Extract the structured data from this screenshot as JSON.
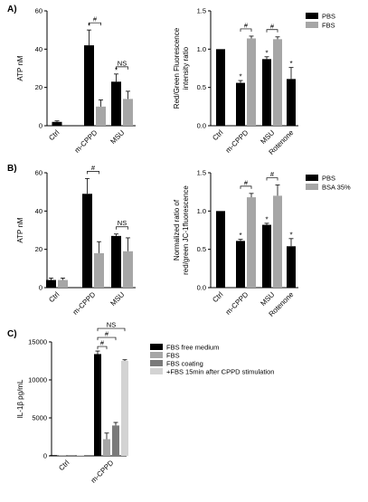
{
  "panel_letters": [
    "A)",
    "B)",
    "C)"
  ],
  "colors": {
    "series1": "#000000",
    "series2": "#a6a6a6",
    "series3": "#7a7a7a",
    "series4": "#d3d3d3"
  },
  "chart_data": [
    {
      "id": "A-left",
      "type": "bar",
      "panel": "A)",
      "ylabel": "ATP nM",
      "ylim": [
        0,
        60
      ],
      "yticks": [
        0,
        20,
        40,
        60
      ],
      "categories": [
        "Ctrl",
        "m-CPPD",
        "MSU"
      ],
      "series": [
        {
          "values": [
            2,
            42,
            23
          ],
          "errors": [
            0.5,
            8,
            4
          ],
          "stars": [
            "",
            "*",
            "*"
          ]
        },
        {
          "values": [
            null,
            10,
            14
          ],
          "errors": [
            null,
            3.5,
            4
          ],
          "stars": [
            "",
            "",
            ""
          ]
        }
      ],
      "brackets": [
        {
          "category": 1,
          "label": "#"
        },
        {
          "category": 2,
          "label": "NS"
        }
      ]
    },
    {
      "id": "A-right",
      "type": "bar",
      "panel": "A)",
      "ylabel": "Red/Green Fluorescence intensity ratio",
      "ylim": [
        0,
        1.5
      ],
      "yticks": [
        "0.0",
        "0.5",
        "1.0",
        "1.5"
      ],
      "categories": [
        "Ctrl",
        "m-CPPD",
        "MSU",
        "Rotenone"
      ],
      "legend": [
        "PBS",
        "FBS"
      ],
      "series": [
        {
          "name": "PBS",
          "values": [
            1.0,
            0.56,
            0.87,
            0.61
          ],
          "errors": [
            0,
            0.03,
            0.03,
            0.15
          ],
          "stars": [
            "",
            "*",
            "*",
            "*"
          ]
        },
        {
          "name": "FBS",
          "values": [
            null,
            1.14,
            1.13,
            null
          ],
          "errors": [
            null,
            0.03,
            0.03,
            null
          ],
          "stars": [
            "",
            "",
            "",
            ""
          ]
        }
      ],
      "brackets": [
        {
          "category": 1,
          "label": "#"
        },
        {
          "category": 2,
          "label": "#"
        }
      ]
    },
    {
      "id": "B-left",
      "type": "bar",
      "panel": "B)",
      "ylabel": "ATP nM",
      "ylim": [
        0,
        60
      ],
      "yticks": [
        0,
        20,
        40,
        60
      ],
      "categories": [
        "Ctrl",
        "m-CPPD",
        "MSU"
      ],
      "series": [
        {
          "values": [
            4,
            49,
            27
          ],
          "errors": [
            1,
            8,
            1
          ],
          "stars": [
            "",
            "",
            ""
          ]
        },
        {
          "values": [
            4,
            18,
            19
          ],
          "errors": [
            1,
            6,
            7
          ],
          "stars": [
            "",
            "",
            ""
          ]
        }
      ],
      "brackets": [
        {
          "category": 1,
          "label": "#"
        },
        {
          "category": 2,
          "label": "NS"
        }
      ]
    },
    {
      "id": "B-right",
      "type": "bar",
      "panel": "B)",
      "ylabel": "Normalized ratio of red/green JC-1fluorescence",
      "ylim": [
        0,
        1.5
      ],
      "yticks": [
        "0.0",
        "0.5",
        "1.0",
        "1.5"
      ],
      "categories": [
        "Ctrl",
        "m-CPPD",
        "MSU",
        "Rotenone"
      ],
      "legend": [
        "PBS",
        "BSA 35%"
      ],
      "series": [
        {
          "name": "PBS",
          "values": [
            1.0,
            0.61,
            0.82,
            0.54
          ],
          "errors": [
            0,
            0.02,
            0.02,
            0.1
          ],
          "stars": [
            "",
            "*",
            "*",
            "*"
          ]
        },
        {
          "name": "BSA 35%",
          "values": [
            null,
            1.18,
            1.2,
            null
          ],
          "errors": [
            null,
            0.05,
            0.14,
            null
          ],
          "stars": [
            "",
            "",
            "",
            ""
          ]
        }
      ],
      "brackets": [
        {
          "category": 1,
          "label": "#"
        },
        {
          "category": 2,
          "label": "#"
        }
      ]
    },
    {
      "id": "C",
      "type": "bar",
      "panel": "C)",
      "ylabel": "IL-1β pg/mL",
      "ylim": [
        0,
        15000
      ],
      "yticks": [
        0,
        5000,
        10000,
        15000
      ],
      "categories": [
        "Ctrl",
        "m-CPPD"
      ],
      "legend": [
        "FBS free medium",
        "FBS",
        "FBS coating",
        "+FBS 15min after CPPD stimulation"
      ],
      "series": [
        {
          "name": "FBS free medium",
          "values": [
            0,
            13400
          ],
          "errors": [
            0,
            400
          ],
          "stars": [
            "",
            ""
          ]
        },
        {
          "name": "FBS",
          "values": [
            0,
            2200
          ],
          "errors": [
            0,
            800
          ],
          "stars": [
            "",
            ""
          ]
        },
        {
          "name": "FBS coating",
          "values": [
            0,
            4000
          ],
          "errors": [
            0,
            400
          ],
          "stars": [
            "",
            ""
          ]
        },
        {
          "name": "+FBS 15min after CPPD stimulation",
          "values": [
            0,
            12500
          ],
          "errors": [
            0,
            150
          ],
          "stars": [
            "",
            ""
          ]
        }
      ],
      "brackets": [
        {
          "category": 1,
          "label": "#"
        },
        {
          "category": 1,
          "label": "#"
        },
        {
          "category": 1,
          "label": "NS"
        }
      ]
    }
  ]
}
